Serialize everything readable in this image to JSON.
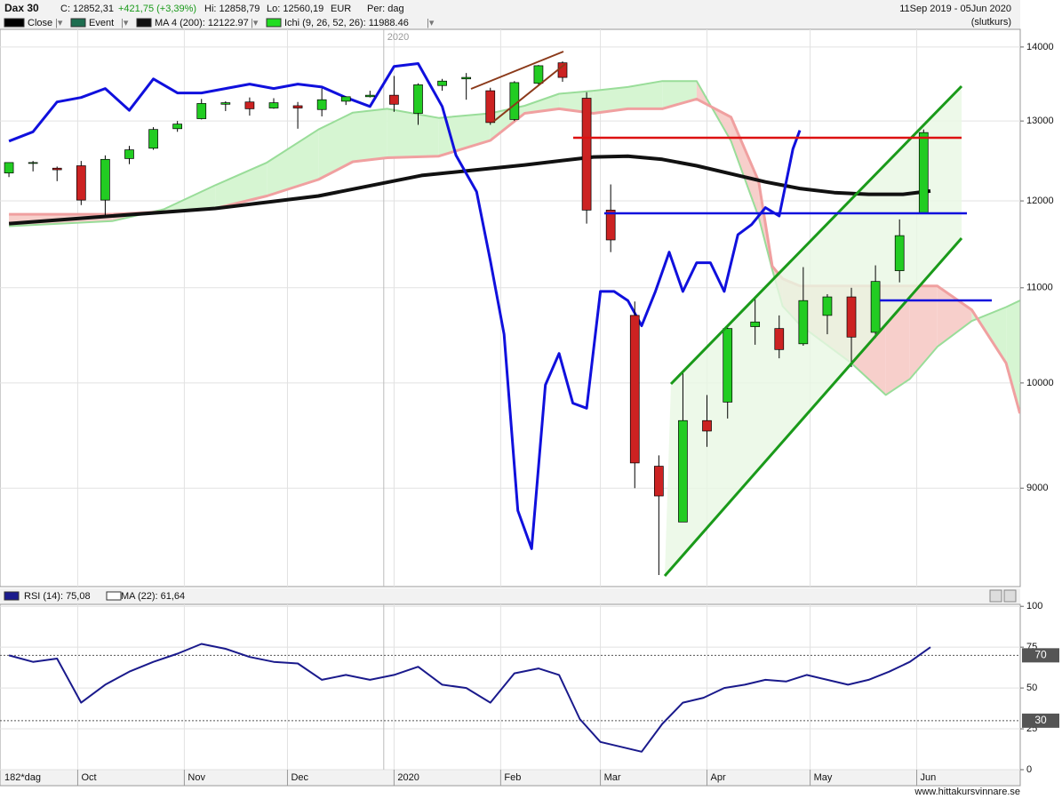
{
  "header": {
    "symbol": "Dax 30",
    "close": "C: 12852,31",
    "change": "+421,75 (+3,39%)",
    "high": "Hi: 12858,79",
    "low": "Lo: 12560,19",
    "currency": "EUR",
    "period": "Per: dag",
    "range": "11Sep 2019 - 05Jun 2020",
    "mode": "(slutkurs)"
  },
  "chart_data": [
    {
      "type": "candlestick",
      "log_y": true,
      "grid": true,
      "ylim": [
        8155,
        14250
      ],
      "yticks": [
        9000,
        10000,
        11000,
        12000,
        13000,
        14000
      ],
      "xlim": [
        -2.6,
        294.1
      ],
      "xticks": [
        {
          "value": 20,
          "label": "Oct"
        },
        {
          "value": 51,
          "label": "Nov"
        },
        {
          "value": 81,
          "label": "Dec"
        },
        {
          "value": 112,
          "label": "2020"
        },
        {
          "value": 143,
          "label": "Feb"
        },
        {
          "value": 172,
          "label": "Mar"
        },
        {
          "value": 203,
          "label": "Apr"
        },
        {
          "value": 233,
          "label": "May"
        },
        {
          "value": 264,
          "label": "Jun"
        }
      ],
      "year_marker": {
        "value": 109,
        "label": "2020"
      },
      "candles": {
        "name": "Close",
        "color": "#000000",
        "up_color": "#22cc22",
        "down_color": "#cc2222",
        "x": [
          0,
          7,
          14,
          21,
          28,
          35,
          42,
          49,
          56,
          63,
          70,
          77,
          84,
          91,
          98,
          105,
          112,
          119,
          126,
          133,
          140,
          147,
          154,
          161,
          168,
          175,
          182,
          189,
          196,
          203,
          209,
          217,
          224,
          231,
          238,
          245,
          252,
          259,
          266
        ],
        "open": [
          12340,
          12470,
          12400,
          12430,
          12010,
          12520,
          12650,
          12900,
          13030,
          13220,
          13250,
          13170,
          13200,
          13150,
          13260,
          13320,
          13340,
          13100,
          13470,
          13560,
          13400,
          13020,
          13500,
          13780,
          13300,
          11890,
          10700,
          9200,
          8700,
          9630,
          9810,
          10580,
          10560,
          10400,
          10700,
          10900,
          10520,
          11190,
          11860
        ],
        "high": [
          12470,
          12490,
          12420,
          12490,
          12560,
          12680,
          12920,
          13000,
          13290,
          13260,
          13310,
          13300,
          13250,
          13430,
          13320,
          13400,
          13600,
          13500,
          13560,
          13640,
          13440,
          13530,
          13750,
          13800,
          13380,
          12200,
          10850,
          9300,
          10100,
          9880,
          10570,
          10900,
          10700,
          11230,
          10930,
          11000,
          11250,
          11780,
          12890
        ],
        "low": [
          12290,
          12360,
          12240,
          11950,
          11830,
          12450,
          12630,
          12860,
          13020,
          13130,
          13070,
          13160,
          12900,
          13060,
          13210,
          13310,
          13120,
          12950,
          13400,
          13280,
          12950,
          13000,
          13480,
          13520,
          11730,
          11400,
          9000,
          8250,
          8700,
          9380,
          9650,
          10390,
          10250,
          10380,
          10500,
          10160,
          10460,
          11060,
          11860
        ],
        "close": [
          12470,
          12470,
          12380,
          12010,
          12510,
          12630,
          12890,
          12960,
          13230,
          13240,
          13160,
          13240,
          13170,
          13280,
          13320,
          13340,
          13220,
          13480,
          13530,
          13580,
          12980,
          13510,
          13740,
          13580,
          11890,
          11540,
          9230,
          8930,
          9630,
          9530,
          10560,
          10630,
          10340,
          10860,
          10900,
          10470,
          11070,
          11590,
          12850
        ]
      },
      "events": {
        "name": "Event",
        "color": "#1e6e50"
      },
      "lines": [
        {
          "name": "MA 4 (200): 12122.97",
          "color": "#111111",
          "width": 4,
          "x": [
            0,
            30,
            60,
            90,
            120,
            150,
            170,
            180,
            190,
            200,
            210,
            220,
            230,
            240,
            250,
            260,
            268
          ],
          "values": [
            11730,
            11820,
            11910,
            12060,
            12310,
            12440,
            12540,
            12550,
            12510,
            12430,
            12330,
            12230,
            12150,
            12100,
            12080,
            12080,
            12120
          ]
        },
        {
          "color": "#1010dd",
          "width": 3,
          "x": [
            0,
            7,
            14,
            21,
            28,
            35,
            42,
            49,
            56,
            63,
            70,
            77,
            84,
            91,
            98,
            105,
            112,
            119,
            126,
            130,
            136,
            140,
            144,
            148,
            152,
            156,
            160,
            164,
            168,
            172,
            176,
            180,
            184,
            188,
            192,
            196,
            200,
            204,
            208,
            212,
            216,
            220,
            224,
            228,
            230
          ],
          "values": [
            12740,
            12860,
            13250,
            13310,
            13430,
            13140,
            13560,
            13370,
            13370,
            13430,
            13490,
            13430,
            13490,
            13450,
            13310,
            13190,
            13730,
            13770,
            13190,
            12560,
            12110,
            11300,
            10500,
            8800,
            8470,
            9980,
            10300,
            9800,
            9750,
            10960,
            10960,
            10860,
            10590,
            10960,
            11400,
            10960,
            11280,
            11280,
            10960,
            11600,
            11720,
            11920,
            11820,
            12640,
            12880
          ]
        }
      ],
      "ichimoku": {
        "name": "Ichi (9, 26, 52, 26): 11988.46",
        "color": "#22dd22",
        "span_a_color": "#99dd99",
        "span_b_color": "#f0a0a0",
        "up_fill": "#d6f5d2",
        "down_fill": "#f7cfcb",
        "x": [
          0,
          30,
          45,
          60,
          75,
          90,
          100,
          110,
          125,
          140,
          150,
          160,
          170,
          180,
          190,
          200,
          210,
          218,
          222,
          225,
          230,
          245,
          255,
          262,
          270,
          280,
          290,
          294
        ],
        "span_a": [
          11700,
          11760,
          11900,
          12190,
          12470,
          12890,
          13110,
          13160,
          13040,
          13100,
          13200,
          13360,
          13400,
          13450,
          13530,
          13530,
          12740,
          11810,
          11200,
          10800,
          10600,
          10200,
          9880,
          10040,
          10370,
          10640,
          10790,
          10860
        ],
        "span_b": [
          11840,
          11840,
          11870,
          11910,
          12060,
          12260,
          12480,
          12530,
          12550,
          12750,
          13100,
          13160,
          13100,
          13160,
          13160,
          13290,
          13050,
          12240,
          11240,
          11100,
          11020,
          11020,
          11020,
          11020,
          11020,
          10760,
          10200,
          9700
        ]
      }
    },
    {
      "type": "line",
      "grid": true,
      "ylim": [
        0,
        111
      ],
      "yticks": [
        0,
        25,
        50,
        75,
        100
      ],
      "levels": [
        70,
        30
      ],
      "xlim": [
        -2.6,
        294.1
      ],
      "series": [
        {
          "name": "RSI (14): 75,08",
          "color": "#1a1a8c",
          "x": [
            0,
            7,
            14,
            21,
            28,
            35,
            42,
            49,
            56,
            63,
            70,
            77,
            84,
            91,
            98,
            105,
            112,
            119,
            126,
            133,
            140,
            147,
            154,
            160,
            166,
            172,
            178,
            184,
            190,
            196,
            202,
            208,
            214,
            220,
            226,
            232,
            238,
            244,
            250,
            256,
            262,
            268
          ],
          "values": [
            70,
            66,
            68,
            41,
            52,
            60,
            66,
            71,
            77,
            74,
            69,
            66,
            65,
            55,
            58,
            55,
            58,
            63,
            52,
            50,
            41,
            59,
            62,
            58,
            31,
            17,
            14,
            11,
            28,
            41,
            44,
            50,
            52,
            55,
            54,
            58,
            55,
            52,
            55,
            60,
            66,
            75
          ]
        }
      ],
      "ma_legend": {
        "name": "MA (22): 61,64",
        "color": "#ffffff"
      }
    }
  ],
  "footer": {
    "bar_count": "182*dag",
    "source": "www.hittakursvinnare.se"
  }
}
